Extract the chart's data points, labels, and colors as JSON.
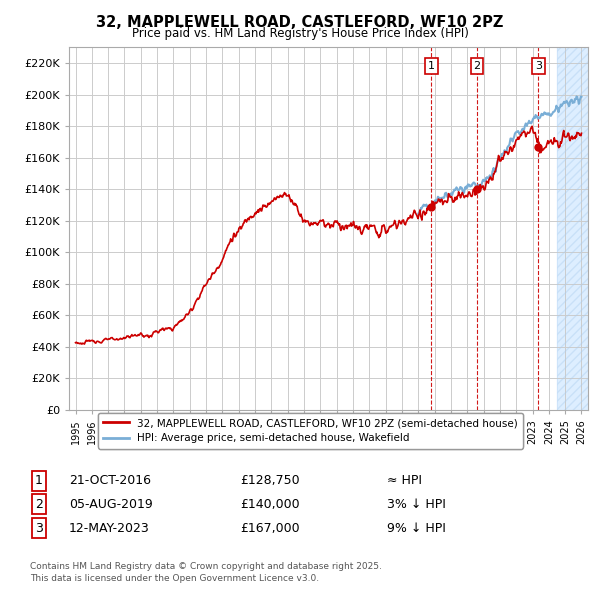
{
  "title_line1": "32, MAPPLEWELL ROAD, CASTLEFORD, WF10 2PZ",
  "title_line2": "Price paid vs. HM Land Registry's House Price Index (HPI)",
  "ylim": [
    0,
    230000
  ],
  "yticks": [
    0,
    20000,
    40000,
    60000,
    80000,
    100000,
    120000,
    140000,
    160000,
    180000,
    200000,
    220000
  ],
  "ytick_labels": [
    "£0",
    "£20K",
    "£40K",
    "£60K",
    "£80K",
    "£100K",
    "£120K",
    "£140K",
    "£160K",
    "£180K",
    "£200K",
    "£220K"
  ],
  "hpi_color": "#7aaed6",
  "price_color": "#cc0000",
  "vline_color": "#cc0000",
  "legend_house": "32, MAPPLEWELL ROAD, CASTLEFORD, WF10 2PZ (semi-detached house)",
  "legend_hpi": "HPI: Average price, semi-detached house, Wakefield",
  "transactions": [
    {
      "num": 1,
      "date": "21-OCT-2016",
      "price": 128750,
      "vs_hpi": "≈ HPI",
      "x_year": 2016.81
    },
    {
      "num": 2,
      "date": "05-AUG-2019",
      "price": 140000,
      "vs_hpi": "3% ↓ HPI",
      "x_year": 2019.59
    },
    {
      "num": 3,
      "date": "12-MAY-2023",
      "price": 167000,
      "vs_hpi": "9% ↓ HPI",
      "x_year": 2023.36
    }
  ],
  "footer": "Contains HM Land Registry data © Crown copyright and database right 2025.\nThis data is licensed under the Open Government Licence v3.0.",
  "background_color": "#ffffff",
  "grid_color": "#cccccc",
  "xlim_left": 1994.6,
  "xlim_right": 2026.4,
  "hpi_start_year": 1995.0,
  "hatch_start": 2024.5
}
